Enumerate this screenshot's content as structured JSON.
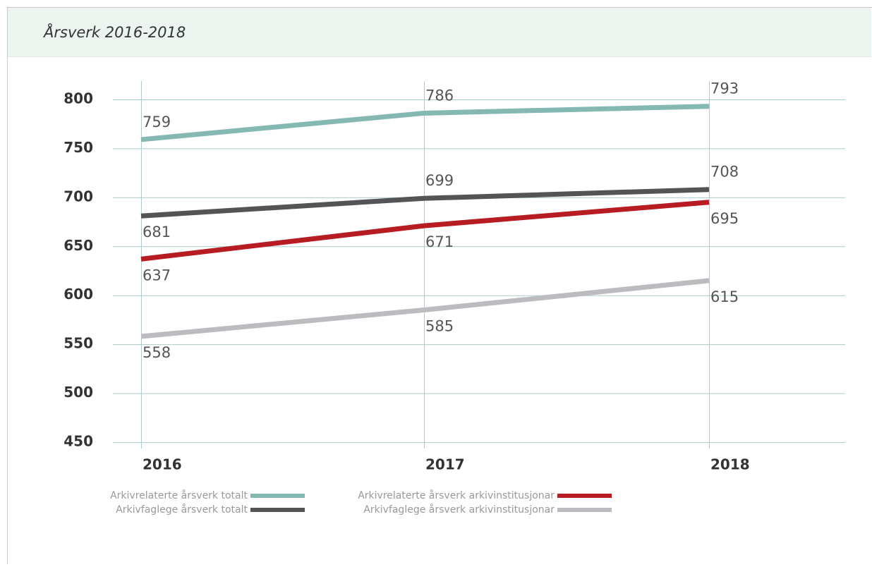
{
  "chart_data": {
    "type": "line",
    "title": "Årsverk 2016-2018",
    "categories": [
      "2016",
      "2017",
      "2018"
    ],
    "series": [
      {
        "name": "Arkivrelaterte årsverk totalt",
        "color": "#86b8b3",
        "values": [
          759,
          786,
          793
        ]
      },
      {
        "name": "Arkivfaglege årsverk totalt",
        "color": "#545456",
        "values": [
          681,
          699,
          708
        ]
      },
      {
        "name": "Arkivrelaterte årsverk arkivinstitusjonar",
        "color": "#b71c22",
        "values": [
          637,
          671,
          695
        ]
      },
      {
        "name": "Arkivfaglege årsverk arkivinstitusjonar",
        "color": "#bcbcc0",
        "values": [
          558,
          585,
          615
        ]
      }
    ],
    "ylim": [
      450,
      800
    ],
    "yticks": [
      450,
      500,
      550,
      600,
      650,
      700,
      750,
      800
    ],
    "grid": true
  }
}
